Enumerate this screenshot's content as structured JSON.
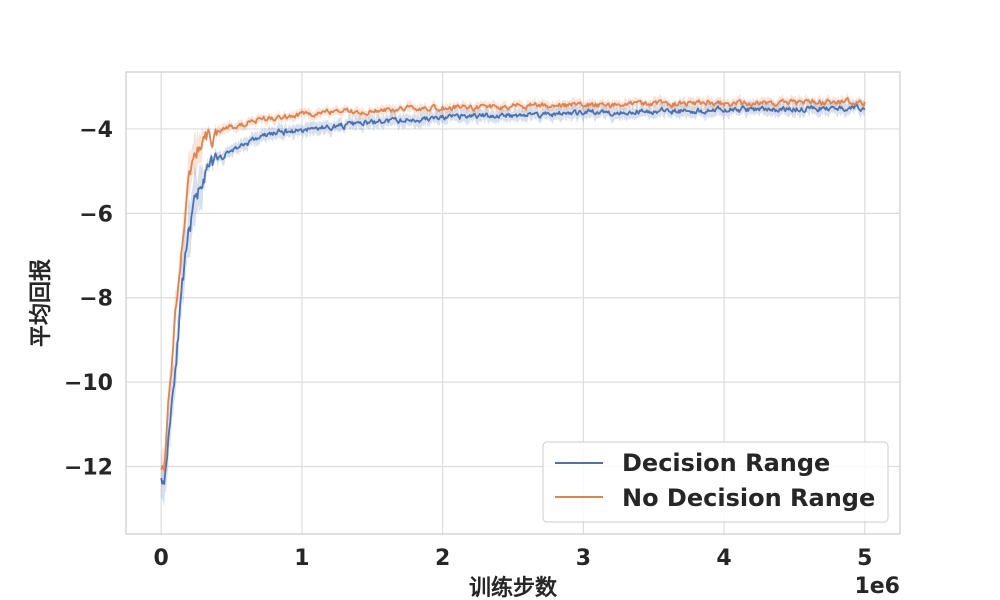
{
  "chart_data": {
    "type": "line",
    "xlabel": "训练步数",
    "ylabel": "平均回报",
    "x_scale_label": "1e6",
    "xlim": [
      -0.25,
      5.25
    ],
    "ylim": [
      -13.6,
      -2.65
    ],
    "x_ticks": [
      0,
      1,
      2,
      3,
      4,
      5
    ],
    "x_tick_labels": [
      "0",
      "1",
      "2",
      "3",
      "4",
      "5"
    ],
    "y_ticks": [
      -12,
      -10,
      -8,
      -6,
      -4
    ],
    "y_tick_labels": [
      "−12",
      "−10",
      "−8",
      "−6",
      "−4"
    ],
    "grid": true,
    "legend_position": "lower-right",
    "shaded_band": true,
    "series": [
      {
        "name": "Decision Range",
        "color": "#4c72b0",
        "x": [
          0,
          0.02,
          0.05,
          0.1,
          0.15,
          0.2,
          0.25,
          0.3,
          0.4,
          0.5,
          0.6,
          0.7,
          0.8,
          1.0,
          1.2,
          1.4,
          1.6,
          1.8,
          2.0,
          2.2,
          2.4,
          2.6,
          2.8,
          3.0,
          3.2,
          3.4,
          3.6,
          3.8,
          4.0,
          4.2,
          4.4,
          4.6,
          4.8,
          5.0
        ],
        "y": [
          -12.1,
          -12.5,
          -11.3,
          -9.6,
          -7.8,
          -6.4,
          -5.6,
          -5.1,
          -4.75,
          -4.5,
          -4.35,
          -4.2,
          -4.1,
          -4.02,
          -3.95,
          -3.88,
          -3.82,
          -3.78,
          -3.74,
          -3.7,
          -3.68,
          -3.66,
          -3.64,
          -3.62,
          -3.6,
          -3.58,
          -3.57,
          -3.56,
          -3.55,
          -3.54,
          -3.53,
          -3.52,
          -3.51,
          -3.5
        ]
      },
      {
        "name": "No Decision Range",
        "color": "#dd8452",
        "x": [
          0,
          0.02,
          0.05,
          0.1,
          0.15,
          0.2,
          0.25,
          0.3,
          0.4,
          0.5,
          0.6,
          0.7,
          0.8,
          1.0,
          1.2,
          1.4,
          1.6,
          1.8,
          2.0,
          2.2,
          2.4,
          2.6,
          2.8,
          3.0,
          3.2,
          3.4,
          3.6,
          3.8,
          4.0,
          4.2,
          4.4,
          4.6,
          4.8,
          5.0
        ],
        "y": [
          -11.9,
          -12.0,
          -10.6,
          -8.5,
          -6.6,
          -5.1,
          -4.55,
          -4.3,
          -4.05,
          -3.95,
          -3.85,
          -3.78,
          -3.72,
          -3.66,
          -3.62,
          -3.58,
          -3.55,
          -3.52,
          -3.5,
          -3.48,
          -3.46,
          -3.45,
          -3.44,
          -3.43,
          -3.42,
          -3.41,
          -3.4,
          -3.39,
          -3.39,
          -3.38,
          -3.38,
          -3.37,
          -3.37,
          -3.36
        ]
      }
    ]
  }
}
